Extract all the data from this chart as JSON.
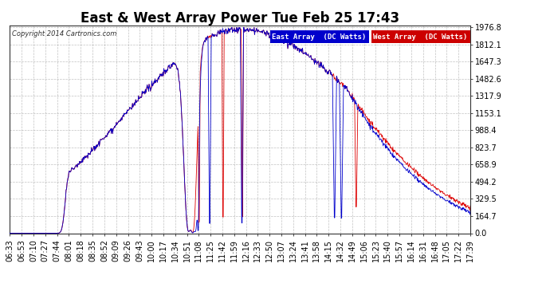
{
  "title": "East & West Array Power Tue Feb 25 17:43",
  "copyright": "Copyright 2014 Cartronics.com",
  "legend_east": "East Array  (DC Watts)",
  "legend_west": "West Array  (DC Watts)",
  "east_color": "#0000cc",
  "west_color": "#dd0000",
  "legend_east_bg": "#0000cc",
  "legend_west_bg": "#cc0000",
  "ymin": 0.0,
  "ymax": 1976.8,
  "yticks": [
    0.0,
    164.7,
    329.5,
    494.2,
    658.9,
    823.7,
    988.4,
    1153.1,
    1317.9,
    1482.6,
    1647.3,
    1812.1,
    1976.8
  ],
  "bg_color": "#ffffff",
  "grid_color": "#999999",
  "title_fontsize": 12,
  "tick_fontsize": 7,
  "x_tick_labels": [
    "06:33",
    "06:53",
    "07:10",
    "07:27",
    "07:44",
    "08:01",
    "08:18",
    "08:35",
    "08:52",
    "09:09",
    "09:26",
    "09:43",
    "10:00",
    "10:17",
    "10:34",
    "10:51",
    "11:08",
    "11:25",
    "11:42",
    "11:59",
    "12:16",
    "12:33",
    "12:50",
    "13:07",
    "13:24",
    "13:41",
    "13:58",
    "14:15",
    "14:32",
    "14:49",
    "15:06",
    "15:23",
    "15:40",
    "15:57",
    "16:14",
    "16:31",
    "16:48",
    "17:05",
    "17:22",
    "17:39"
  ]
}
